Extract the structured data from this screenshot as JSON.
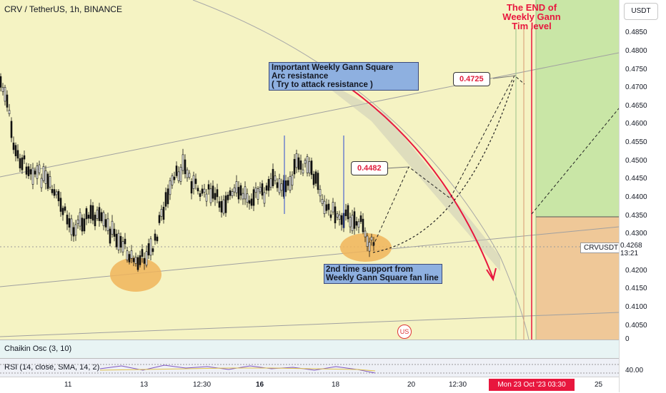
{
  "header": {
    "title": "CRV / TetherUS, 1h, BINANCE"
  },
  "annotations": {
    "main_line1": "Important Weekly Gann Square",
    "main_line2": "Arc resistance",
    "main_line3": "( Try to attack resistance )",
    "support_line1": "2nd time support from",
    "support_line2": "Weekly Gann Square fan line",
    "end_line1": "The END of",
    "end_line2": "Weekly Gann",
    "end_line3": "Tim level",
    "target1": "0.4482",
    "target2": "0.4725"
  },
  "yaxis": {
    "currency_button": "USDT",
    "ticks": [
      "0.4850",
      "0.4800",
      "0.4750",
      "0.4700",
      "0.4650",
      "0.4600",
      "0.4550",
      "0.4500",
      "0.4450",
      "0.4400",
      "0.4350",
      "0.4300",
      "0.4200",
      "0.4150",
      "0.4100",
      "0.4050"
    ],
    "symbol_label": "CRVUSDT",
    "current_price": "0.4268",
    "countdown": "13:21",
    "chaikin_value": "0",
    "rsi_value": "40.00"
  },
  "indicators": {
    "chaikin": "Chaikin Osc (3, 10)",
    "rsi": "RSI (14, close, SMA, 14, 2)"
  },
  "xaxis": {
    "ticks": [
      "11",
      "13",
      "12:30",
      "16",
      "18",
      "20",
      "12:30",
      "25"
    ],
    "highlight_date": "Mon 23 Oct '23   03:30"
  },
  "colors": {
    "green_zone": "#c9e6a6",
    "orange_zone": "#efc898",
    "accent_red": "#e8173e",
    "background": "#f5f3c3"
  }
}
